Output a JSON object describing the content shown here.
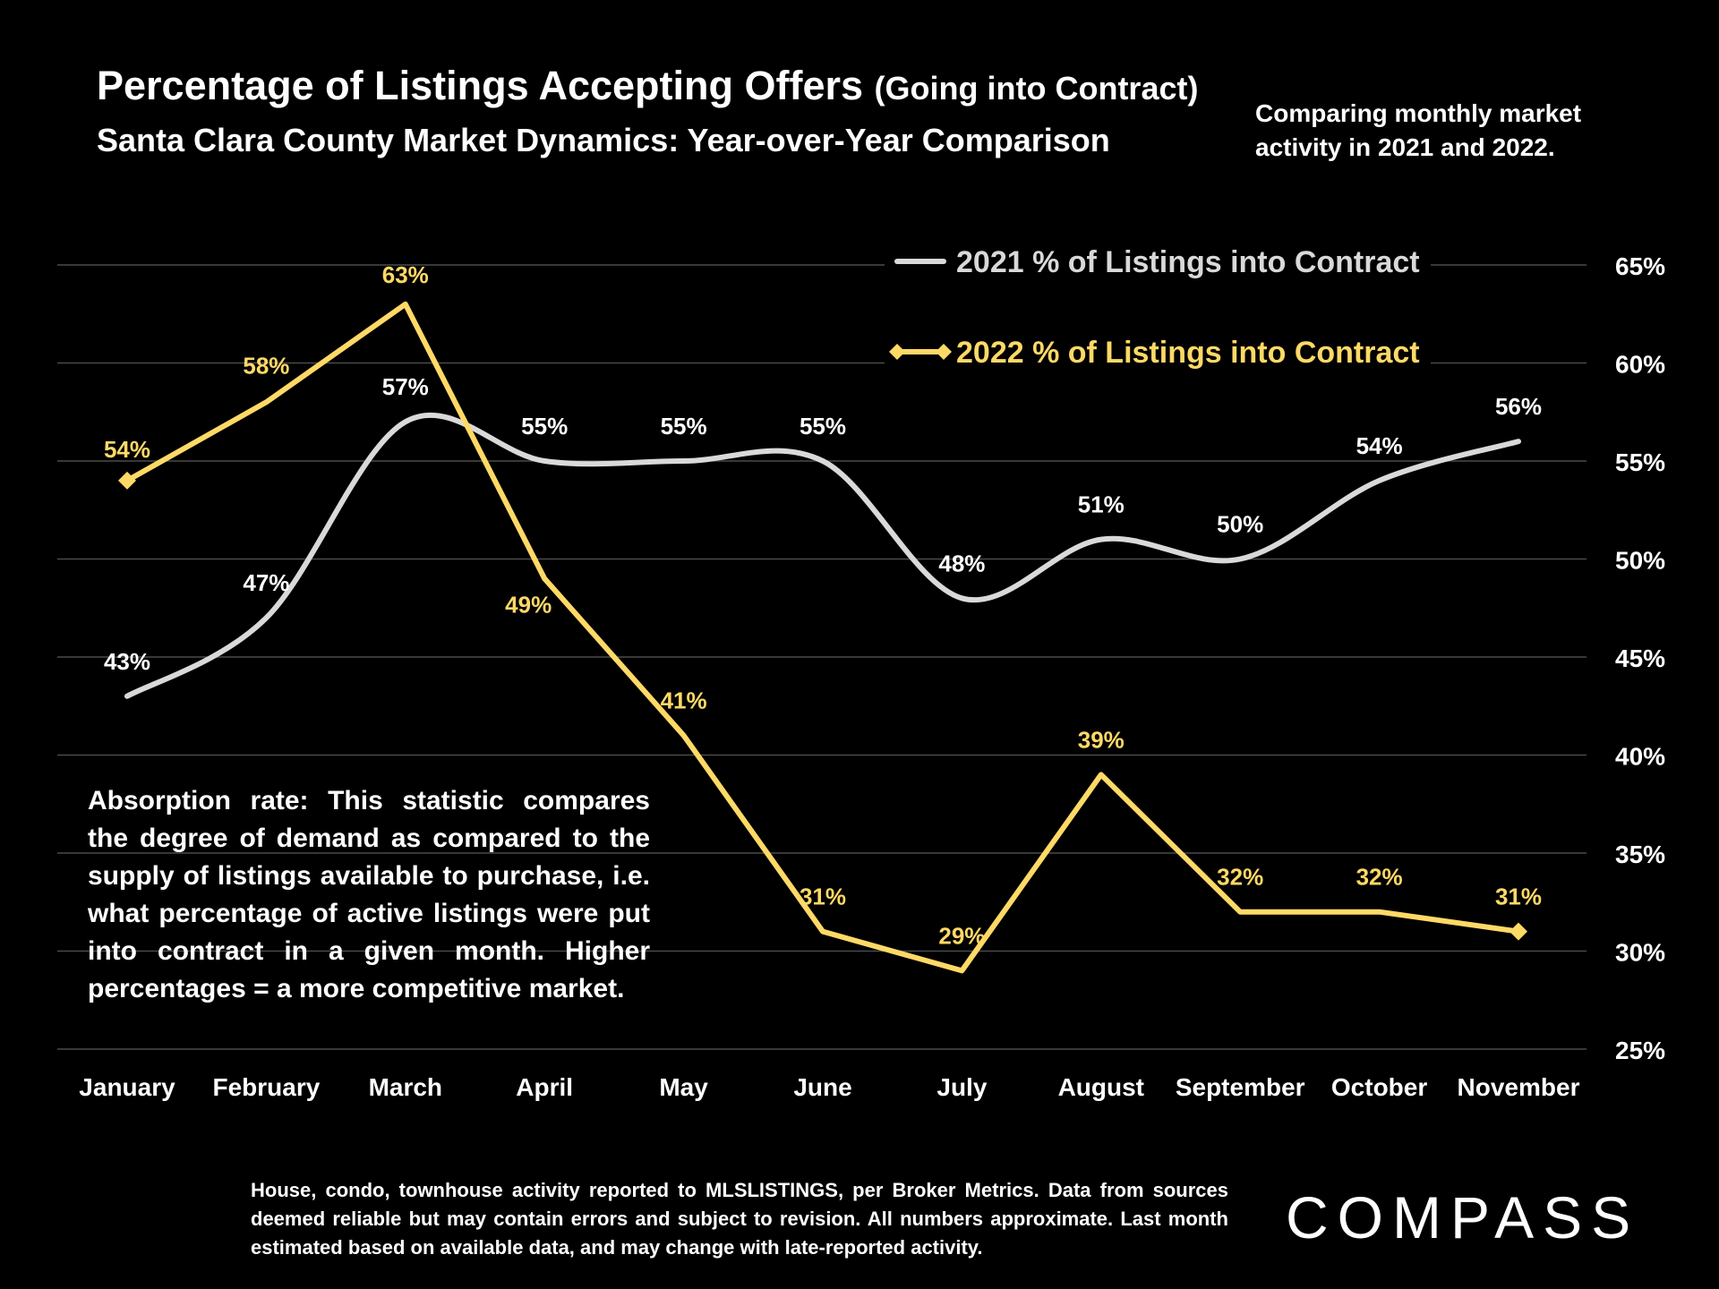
{
  "header": {
    "title_main": "Percentage of Listings Accepting Offers",
    "title_paren": "(Going into Contract)",
    "subtitle": "Santa Clara County Market Dynamics: Year-over-Year Comparison",
    "side_note": "Comparing monthly market activity in 2021 and 2022."
  },
  "annotation": {
    "text": "Absorption rate: This statistic compares the degree of demand as compared to the supply of listings available to purchase, i.e. what percentage of active listings were put into contract in a given month. Higher percentages = a more competitive market."
  },
  "footer": {
    "text": "House, condo, townhouse activity reported to MLSLISTINGS, per Broker Metrics. Data from sources deemed reliable but may contain errors and subject to revision. All numbers approximate. Last month estimated based on available data, and may change with late-reported activity."
  },
  "logo": {
    "text": "COMPASS"
  },
  "chart_data": {
    "type": "line",
    "title": "Percentage of Listings Accepting Offers (Going into Contract)",
    "subtitle": "Santa Clara County Market Dynamics: Year-over-Year Comparison",
    "categories": [
      "January",
      "February",
      "March",
      "April",
      "May",
      "June",
      "July",
      "August",
      "September",
      "October",
      "November"
    ],
    "series": [
      {
        "name": "2021 % of Listings into Contract",
        "color": "#d9d9d9",
        "smooth": true,
        "marker": "none",
        "values": [
          43,
          47,
          57,
          55,
          55,
          55,
          48,
          51,
          50,
          54,
          56
        ],
        "labels": [
          "43%",
          "47%",
          "57%",
          "55%",
          "55%",
          "55%",
          "48%",
          "51%",
          "50%",
          "54%",
          "56%"
        ]
      },
      {
        "name": "2022 % of Listings into Contract",
        "color": "#ffd966",
        "smooth": false,
        "marker": "diamond",
        "values": [
          54,
          58,
          63,
          49,
          41,
          31,
          29,
          39,
          32,
          32,
          31
        ],
        "labels": [
          "54%",
          "58%",
          "63%",
          "49%",
          "41%",
          "31%",
          "29%",
          "39%",
          "32%",
          "32%",
          "31%"
        ]
      }
    ],
    "y_axis": {
      "position": "right",
      "min": 25,
      "max": 65,
      "step": 5,
      "tick_labels": [
        "25%",
        "30%",
        "35%",
        "40%",
        "45%",
        "50%",
        "55%",
        "60%",
        "65%"
      ]
    },
    "grid": true,
    "legend": "top-right"
  }
}
